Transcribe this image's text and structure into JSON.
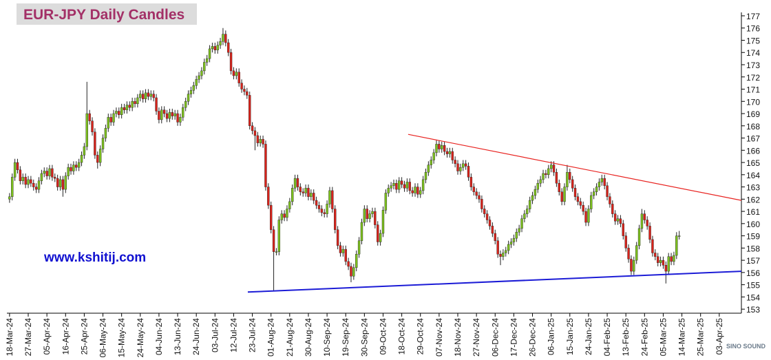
{
  "chart_data": {
    "type": "candlestick",
    "title": "EUR-JPY Daily  Candles",
    "annotation": "www.kshitij.com",
    "watermark": "SINO SOUND",
    "up_color": "#7cbf1e",
    "down_color": "#d8231b",
    "wick_color": "#222222",
    "xlim": [
      -1,
      274.3
    ],
    "ylim": [
      152.67,
      177.28
    ],
    "yticks": [
      153,
      154,
      155,
      156,
      157,
      158,
      159,
      160,
      161,
      162,
      163,
      164,
      165,
      166,
      167,
      168,
      169,
      170,
      171,
      172,
      173,
      174,
      175,
      176,
      177
    ],
    "xticks": [
      {
        "value": 0,
        "label": "18-Mar-24"
      },
      {
        "value": 7,
        "label": "27-Mar-24"
      },
      {
        "value": 14,
        "label": "05-Apr-24"
      },
      {
        "value": 21,
        "label": "16-Apr-24"
      },
      {
        "value": 28,
        "label": "25-Apr-24"
      },
      {
        "value": 35,
        "label": "06-May-24"
      },
      {
        "value": 42,
        "label": "15-May-24"
      },
      {
        "value": 49,
        "label": "24-May-24"
      },
      {
        "value": 56,
        "label": "04-Jun-24"
      },
      {
        "value": 63,
        "label": "13-Jun-24"
      },
      {
        "value": 70,
        "label": "24-Jun-24"
      },
      {
        "value": 77,
        "label": "03-Jul-24"
      },
      {
        "value": 84,
        "label": "12-Jul-24"
      },
      {
        "value": 91,
        "label": "23-Jul-24"
      },
      {
        "value": 98,
        "label": "01-Aug-24"
      },
      {
        "value": 105,
        "label": "21-Aug-24"
      },
      {
        "value": 112,
        "label": "30-Aug-24"
      },
      {
        "value": 119,
        "label": "10-Sep-24"
      },
      {
        "value": 126,
        "label": "19-Sep-24"
      },
      {
        "value": 133,
        "label": "30-Sep-24"
      },
      {
        "value": 140,
        "label": "09-Oct-24"
      },
      {
        "value": 147,
        "label": "18-Oct-24"
      },
      {
        "value": 154,
        "label": "29-Oct-24"
      },
      {
        "value": 161,
        "label": "07-Nov-24"
      },
      {
        "value": 168,
        "label": "18-Nov-24"
      },
      {
        "value": 175,
        "label": "27-Nov-24"
      },
      {
        "value": 182,
        "label": "06-Dec-24"
      },
      {
        "value": 189,
        "label": "17-Dec-24"
      },
      {
        "value": 196,
        "label": "26-Dec-24"
      },
      {
        "value": 203,
        "label": "06-Jan-25"
      },
      {
        "value": 210,
        "label": "15-Jan-25"
      },
      {
        "value": 217,
        "label": "24-Jan-25"
      },
      {
        "value": 224,
        "label": "04-Feb-25"
      },
      {
        "value": 231,
        "label": "13-Feb-25"
      },
      {
        "value": 238,
        "label": "24-Feb-25"
      },
      {
        "value": 245,
        "label": "05-Mar-25"
      },
      {
        "value": 252,
        "label": "14-Mar-25"
      },
      {
        "value": 259,
        "label": "25-Mar-25"
      },
      {
        "value": 266,
        "label": "03-Apr-25"
      }
    ],
    "open": [
      162.0,
      162.2,
      163.8,
      165.0,
      164.4,
      163.5,
      163.8,
      163.2,
      163.6,
      163.3,
      163.0,
      162.8,
      163.5,
      164.1,
      164.3,
      163.9,
      164.5,
      163.8,
      163.7,
      163.0,
      163.6,
      162.8,
      163.9,
      164.6,
      164.3,
      164.8,
      164.6,
      165.0,
      165.6,
      166.3,
      169.0,
      168.4,
      167.5,
      165.6,
      165.0,
      166.1,
      167.0,
      167.8,
      168.7,
      168.3,
      169.0,
      169.2,
      168.9,
      169.5,
      169.3,
      169.7,
      169.5,
      170.0,
      169.8,
      170.3,
      170.6,
      170.2,
      170.7,
      170.4,
      170.6,
      170.3,
      169.2,
      168.5,
      169.3,
      169.0,
      168.6,
      169.1,
      168.8,
      169.0,
      168.3,
      168.7,
      169.5,
      170.0,
      170.6,
      170.9,
      171.3,
      171.8,
      172.1,
      172.5,
      173.2,
      173.5,
      174.3,
      174.5,
      174.2,
      174.6,
      174.9,
      175.5,
      174.8,
      174.0,
      172.5,
      172.1,
      172.4,
      171.5,
      171.0,
      170.8,
      170.5,
      168.0,
      167.6,
      167.2,
      166.6,
      166.9,
      166.5,
      163.0,
      161.5,
      159.5,
      157.7,
      157.7,
      160.3,
      160.8,
      160.5,
      161.2,
      161.8,
      162.9,
      163.7,
      163.0,
      162.6,
      162.5,
      162.9,
      162.2,
      162.5,
      161.9,
      161.5,
      161.2,
      160.9,
      160.8,
      161.6,
      162.7,
      161.2,
      159.5,
      158.2,
      157.6,
      157.9,
      156.9,
      156.5,
      155.7,
      156.4,
      157.5,
      158.6,
      160.1,
      161.2,
      160.4,
      160.8,
      161.0,
      159.9,
      158.5,
      159.2,
      161.1,
      162.5,
      162.9,
      163.1,
      163.3,
      162.8,
      163.5,
      163.2,
      162.9,
      163.4,
      162.7,
      162.5,
      163.0,
      162.4,
      162.7,
      163.6,
      164.2,
      164.8,
      165.2,
      165.8,
      166.5,
      166.1,
      166.4,
      165.9,
      165.7,
      165.9,
      165.2,
      164.9,
      164.3,
      164.6,
      164.9,
      164.7,
      163.8,
      163.0,
      162.6,
      162.3,
      162.0,
      161.2,
      160.8,
      160.3,
      159.8,
      159.2,
      158.6,
      157.5,
      157.3,
      157.6,
      157.8,
      158.3,
      158.5,
      158.8,
      159.3,
      159.6,
      160.4,
      160.8,
      161.2,
      161.9,
      162.3,
      162.8,
      163.3,
      163.6,
      164.1,
      164.0,
      164.5,
      164.8,
      164.2,
      163.3,
      162.6,
      161.8,
      163.0,
      164.2,
      163.6,
      162.9,
      162.2,
      161.8,
      161.5,
      161.0,
      160.1,
      161.2,
      162.3,
      162.6,
      163.0,
      163.4,
      163.7,
      163.1,
      162.2,
      161.6,
      160.8,
      160.2,
      160.4,
      160.0,
      159.0,
      158.0,
      157.1,
      156.1,
      157.0,
      158.2,
      159.6,
      160.8,
      160.3,
      159.8,
      158.7,
      157.6,
      157.3,
      156.8,
      157.0,
      156.6,
      156.1,
      157.3,
      156.9,
      157.4,
      159.0
    ],
    "high": [
      162.5,
      164.1,
      165.3,
      165.3,
      164.7,
      164.1,
      164.1,
      163.9,
      163.9,
      163.6,
      163.3,
      163.8,
      164.4,
      164.6,
      164.6,
      164.8,
      164.8,
      164.1,
      164.0,
      163.9,
      163.9,
      164.2,
      164.9,
      164.9,
      165.1,
      165.1,
      165.3,
      165.9,
      166.6,
      171.6,
      169.3,
      168.7,
      167.8,
      165.9,
      166.4,
      167.3,
      168.1,
      169.0,
      169.0,
      169.3,
      169.5,
      169.5,
      169.8,
      169.8,
      170.0,
      170.0,
      170.3,
      170.3,
      170.6,
      170.9,
      170.9,
      171.0,
      171.0,
      170.9,
      170.9,
      170.6,
      169.5,
      169.6,
      169.6,
      169.3,
      169.4,
      169.4,
      169.3,
      169.3,
      169.0,
      169.8,
      170.3,
      170.9,
      171.2,
      171.6,
      172.1,
      172.4,
      172.8,
      173.5,
      173.8,
      174.6,
      174.8,
      174.8,
      174.9,
      175.2,
      176.0,
      175.8,
      175.1,
      174.3,
      172.8,
      172.7,
      172.7,
      171.8,
      171.3,
      171.1,
      170.8,
      168.3,
      167.9,
      167.5,
      167.2,
      167.2,
      166.8,
      163.3,
      161.8,
      159.8,
      158.0,
      160.6,
      161.1,
      161.1,
      161.5,
      162.1,
      163.2,
      164.0,
      164.0,
      163.3,
      162.9,
      163.2,
      163.2,
      162.8,
      162.8,
      162.2,
      161.8,
      161.5,
      161.2,
      161.9,
      163.0,
      163.0,
      161.5,
      159.8,
      158.5,
      158.2,
      158.2,
      157.2,
      156.8,
      156.7,
      157.8,
      158.9,
      160.4,
      161.5,
      161.5,
      161.1,
      161.3,
      161.3,
      160.2,
      159.5,
      161.4,
      162.8,
      163.2,
      163.4,
      163.6,
      163.6,
      163.8,
      163.8,
      163.5,
      163.7,
      163.7,
      163.0,
      163.3,
      163.3,
      163.0,
      163.9,
      164.5,
      165.1,
      165.5,
      166.1,
      166.8,
      166.8,
      166.7,
      166.7,
      166.2,
      166.2,
      166.2,
      165.5,
      165.2,
      164.9,
      165.2,
      165.2,
      165.0,
      164.1,
      163.3,
      162.9,
      162.6,
      162.3,
      161.5,
      161.1,
      160.6,
      160.1,
      159.5,
      158.9,
      157.8,
      157.9,
      158.1,
      158.6,
      158.8,
      159.1,
      159.6,
      159.9,
      160.7,
      161.1,
      161.5,
      162.2,
      162.6,
      163.1,
      163.6,
      163.9,
      164.4,
      164.4,
      164.8,
      165.1,
      165.1,
      164.5,
      163.6,
      162.9,
      163.3,
      164.8,
      164.5,
      163.9,
      163.2,
      162.5,
      162.1,
      161.8,
      161.3,
      161.5,
      162.6,
      162.9,
      163.3,
      163.7,
      164.0,
      164.0,
      163.4,
      162.5,
      161.9,
      161.1,
      160.7,
      160.7,
      160.3,
      159.3,
      158.3,
      157.4,
      157.3,
      158.5,
      159.9,
      161.2,
      161.1,
      160.6,
      160.1,
      159.0,
      157.9,
      157.6,
      157.3,
      157.3,
      156.9,
      157.6,
      157.6,
      157.7,
      159.3,
      159.4
    ],
    "low": [
      161.7,
      161.9,
      163.5,
      164.1,
      163.2,
      163.2,
      162.9,
      162.9,
      163.0,
      162.7,
      162.5,
      162.5,
      163.2,
      163.8,
      163.6,
      163.6,
      163.5,
      163.4,
      162.7,
      162.7,
      162.2,
      162.5,
      163.6,
      164.0,
      164.0,
      164.3,
      164.3,
      164.7,
      165.3,
      166.0,
      168.1,
      167.2,
      165.3,
      164.5,
      164.7,
      165.8,
      166.7,
      167.5,
      168.0,
      168.0,
      168.7,
      168.6,
      168.6,
      169.0,
      169.0,
      169.2,
      169.2,
      169.5,
      169.5,
      170.0,
      169.9,
      169.9,
      170.1,
      170.1,
      170.0,
      168.9,
      168.2,
      168.2,
      168.7,
      168.3,
      168.3,
      168.5,
      168.5,
      168.0,
      168.0,
      168.4,
      169.2,
      169.7,
      170.3,
      170.6,
      171.0,
      171.5,
      171.8,
      172.2,
      172.9,
      173.2,
      174.0,
      173.9,
      173.9,
      174.3,
      174.6,
      174.5,
      173.7,
      172.2,
      171.8,
      171.8,
      171.2,
      170.7,
      170.5,
      170.2,
      167.7,
      167.3,
      166.0,
      166.3,
      166.3,
      166.2,
      162.7,
      161.2,
      159.2,
      154.5,
      157.4,
      157.4,
      160.0,
      160.2,
      160.2,
      160.9,
      161.5,
      162.6,
      162.7,
      162.3,
      162.2,
      162.2,
      161.9,
      161.9,
      161.6,
      161.2,
      160.9,
      160.6,
      160.5,
      160.5,
      161.3,
      160.9,
      159.2,
      157.9,
      157.3,
      157.3,
      156.6,
      156.2,
      155.2,
      155.4,
      156.1,
      157.2,
      158.3,
      159.8,
      160.1,
      160.1,
      160.5,
      159.6,
      158.2,
      158.2,
      158.9,
      160.8,
      162.2,
      162.6,
      162.8,
      162.5,
      162.5,
      162.9,
      162.6,
      162.6,
      162.4,
      162.2,
      162.2,
      162.1,
      162.1,
      162.4,
      163.3,
      163.9,
      164.5,
      164.9,
      165.5,
      165.8,
      165.8,
      165.6,
      165.4,
      165.4,
      164.9,
      164.6,
      164.0,
      164.0,
      164.3,
      164.4,
      163.5,
      162.7,
      162.3,
      162.0,
      161.7,
      160.9,
      160.5,
      160.0,
      159.5,
      158.9,
      158.3,
      157.2,
      156.6,
      157.0,
      157.3,
      157.5,
      158.0,
      158.2,
      158.5,
      159.0,
      159.3,
      160.1,
      160.5,
      160.9,
      161.6,
      162.0,
      162.5,
      163.0,
      163.3,
      163.7,
      163.7,
      164.2,
      163.9,
      163.0,
      162.3,
      161.5,
      161.5,
      162.7,
      163.3,
      162.6,
      161.9,
      161.5,
      161.2,
      160.7,
      159.8,
      159.8,
      160.9,
      162.0,
      162.3,
      162.7,
      163.1,
      162.8,
      161.9,
      161.3,
      160.5,
      159.9,
      159.9,
      159.7,
      158.7,
      157.7,
      156.8,
      155.8,
      155.8,
      156.7,
      157.9,
      159.3,
      160.0,
      159.5,
      158.4,
      157.3,
      157.0,
      156.5,
      156.5,
      156.3,
      155.1,
      155.8,
      156.6,
      156.6,
      157.1,
      158.7
    ],
    "close": [
      162.2,
      163.8,
      165.0,
      164.4,
      163.5,
      163.8,
      163.2,
      163.6,
      163.3,
      163.0,
      162.8,
      163.5,
      164.1,
      164.3,
      163.9,
      164.5,
      163.8,
      163.7,
      163.0,
      163.6,
      162.8,
      163.9,
      164.6,
      164.3,
      164.8,
      164.6,
      165.0,
      165.6,
      166.3,
      169.0,
      168.4,
      167.5,
      165.6,
      165.0,
      166.1,
      167.0,
      167.8,
      168.7,
      168.3,
      169.0,
      169.2,
      168.9,
      169.5,
      169.3,
      169.7,
      169.5,
      170.0,
      169.8,
      170.3,
      170.6,
      170.2,
      170.7,
      170.4,
      170.6,
      170.3,
      169.2,
      168.5,
      169.3,
      169.0,
      168.6,
      169.1,
      168.8,
      169.0,
      168.3,
      168.7,
      169.5,
      170.0,
      170.6,
      170.9,
      171.3,
      171.8,
      172.1,
      172.5,
      173.2,
      173.5,
      174.3,
      174.5,
      174.2,
      174.6,
      174.9,
      175.5,
      174.8,
      174.0,
      172.5,
      172.1,
      172.4,
      171.5,
      171.0,
      170.8,
      170.5,
      168.0,
      167.6,
      167.2,
      166.6,
      166.9,
      166.5,
      163.0,
      161.5,
      159.5,
      157.7,
      157.7,
      160.3,
      160.8,
      160.5,
      161.2,
      161.8,
      162.9,
      163.7,
      163.0,
      162.6,
      162.5,
      162.9,
      162.2,
      162.5,
      161.9,
      161.5,
      161.2,
      160.9,
      160.8,
      161.6,
      162.7,
      161.2,
      159.5,
      158.2,
      157.6,
      157.9,
      156.9,
      156.5,
      155.7,
      156.4,
      157.5,
      158.6,
      160.1,
      161.2,
      160.4,
      160.8,
      161.0,
      159.9,
      158.5,
      159.2,
      161.1,
      162.5,
      162.9,
      163.1,
      163.3,
      162.8,
      163.5,
      163.2,
      162.9,
      163.4,
      162.7,
      162.5,
      163.0,
      162.4,
      162.7,
      163.6,
      164.2,
      164.8,
      165.2,
      165.8,
      166.5,
      166.1,
      166.4,
      165.9,
      165.7,
      165.9,
      165.2,
      164.9,
      164.3,
      164.6,
      164.9,
      164.7,
      163.8,
      163.0,
      162.6,
      162.3,
      162.0,
      161.2,
      160.8,
      160.3,
      159.8,
      159.2,
      158.6,
      157.5,
      157.3,
      157.6,
      157.8,
      158.3,
      158.5,
      158.8,
      159.3,
      159.6,
      160.4,
      160.8,
      161.2,
      161.9,
      162.3,
      162.8,
      163.3,
      163.6,
      164.1,
      164.0,
      164.5,
      164.8,
      164.2,
      163.3,
      162.6,
      161.8,
      163.0,
      164.2,
      163.6,
      162.9,
      162.2,
      161.8,
      161.5,
      161.0,
      160.1,
      161.2,
      162.3,
      162.6,
      163.0,
      163.4,
      163.7,
      163.1,
      162.2,
      161.6,
      160.8,
      160.2,
      160.4,
      160.0,
      159.0,
      158.0,
      157.1,
      156.1,
      157.0,
      158.2,
      159.6,
      160.8,
      160.3,
      159.8,
      158.7,
      157.6,
      157.3,
      156.8,
      157.0,
      156.6,
      156.1,
      157.3,
      156.9,
      157.4,
      159.0,
      159.0
    ],
    "trendlines": [
      {
        "color": "#e8221f",
        "x": [
          149.4,
          274.3
        ],
        "y": [
          167.3,
          161.9
        ]
      },
      {
        "color": "#1b1bd6",
        "x": [
          89.3,
          274.3
        ],
        "y": [
          154.4,
          156.1
        ]
      }
    ]
  }
}
